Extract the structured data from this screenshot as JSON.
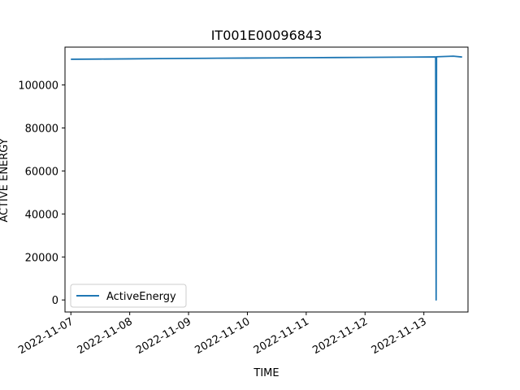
{
  "chart_data": {
    "type": "line",
    "title": "IT001E00096843",
    "xlabel": "TIME",
    "ylabel": "ACTIVE ENERGY",
    "x_range": [
      "2022-11-06T21:36",
      "2022-11-13T18:00"
    ],
    "ylim": [
      -5600,
      117600
    ],
    "x_ticks": [
      "2022-11-07",
      "2022-11-08",
      "2022-11-09",
      "2022-11-10",
      "2022-11-11",
      "2022-11-12",
      "2022-11-13"
    ],
    "y_ticks": [
      0,
      20000,
      40000,
      60000,
      80000,
      100000
    ],
    "y_tick_labels": [
      "0",
      "20000",
      "40000",
      "60000",
      "80000",
      "100000"
    ],
    "grid": false,
    "legend_position": "lower-left",
    "series": [
      {
        "name": "ActiveEnergy",
        "color": "#1f77b4",
        "points": [
          {
            "x": "2022-11-07T00:00",
            "y": 111950
          },
          {
            "x": "2022-11-07T12:00",
            "y": 112050
          },
          {
            "x": "2022-11-08T00:00",
            "y": 112150
          },
          {
            "x": "2022-11-08T12:00",
            "y": 112250
          },
          {
            "x": "2022-11-09T00:00",
            "y": 112350
          },
          {
            "x": "2022-11-09T12:00",
            "y": 112450
          },
          {
            "x": "2022-11-10T00:00",
            "y": 112520
          },
          {
            "x": "2022-11-10T12:00",
            "y": 112600
          },
          {
            "x": "2022-11-11T00:00",
            "y": 112680
          },
          {
            "x": "2022-11-11T12:00",
            "y": 112760
          },
          {
            "x": "2022-11-12T00:00",
            "y": 112840
          },
          {
            "x": "2022-11-12T12:00",
            "y": 112920
          },
          {
            "x": "2022-11-13T00:00",
            "y": 113000
          },
          {
            "x": "2022-11-13T04:48",
            "y": 113050
          },
          {
            "x": "2022-11-13T05:00",
            "y": 0
          },
          {
            "x": "2022-11-13T05:10",
            "y": 113100
          },
          {
            "x": "2022-11-13T12:00",
            "y": 113400
          },
          {
            "x": "2022-11-13T15:36",
            "y": 113000
          }
        ]
      }
    ]
  }
}
